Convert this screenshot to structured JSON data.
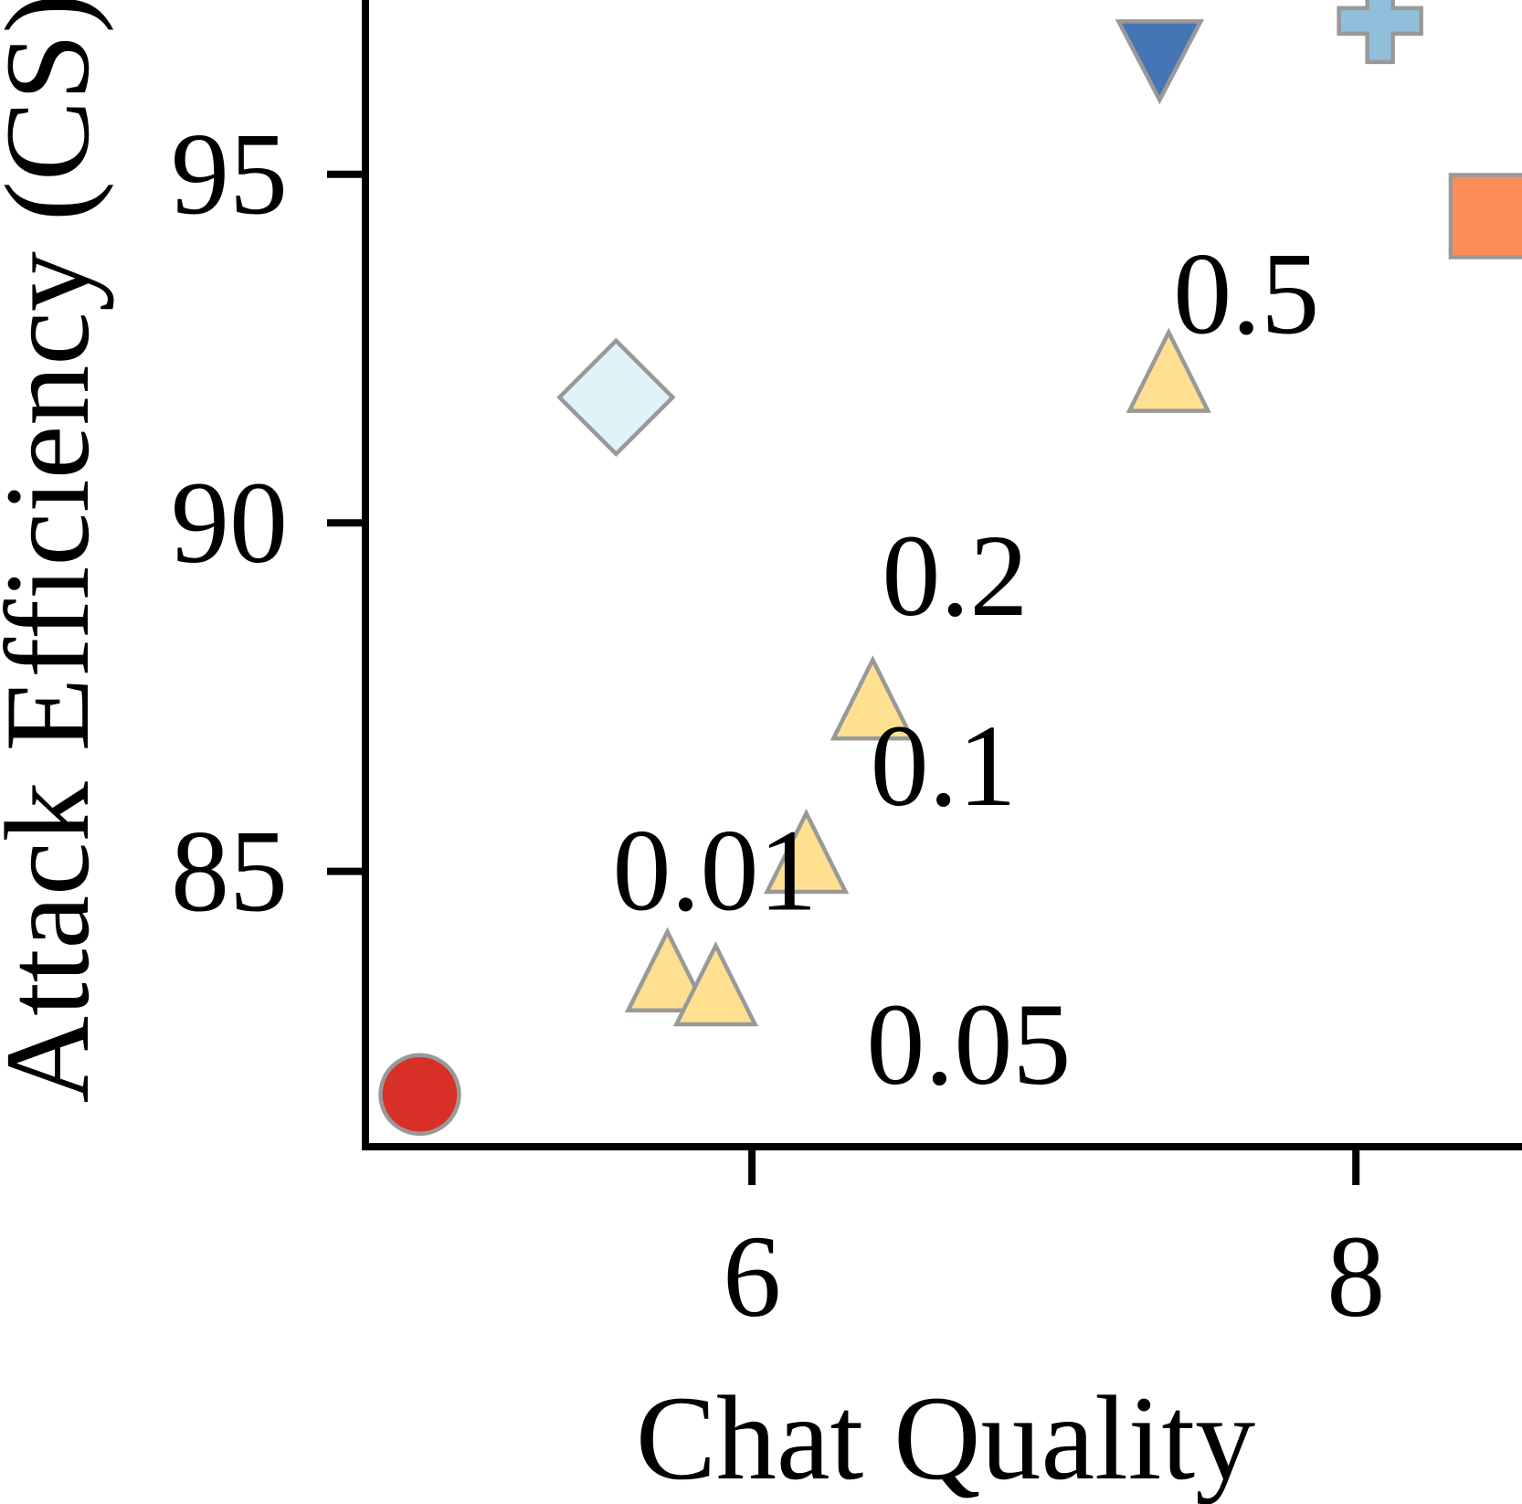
{
  "chart_data": {
    "type": "scatter",
    "title": "",
    "xlabel": "Chat Quality",
    "ylabel": "Attack Efficiency (CS)",
    "xlim": [
      4.72,
      8.55
    ],
    "ylim": [
      81.05,
      97.5
    ],
    "xticks": [
      6,
      8
    ],
    "yticks": [
      85,
      90,
      95
    ],
    "xtick_labels": [
      "6",
      "8"
    ],
    "ytick_labels": [
      "85",
      "90",
      "95"
    ],
    "grid": false,
    "legend": "none",
    "series": [
      {
        "marker": "circle",
        "color": "#d73027",
        "points": [
          {
            "x": 4.9,
            "y": 81.8
          }
        ]
      },
      {
        "marker": "diamond",
        "color": "#e0f3f8",
        "points": [
          {
            "x": 5.55,
            "y": 91.8
          }
        ]
      },
      {
        "marker": "triangle-up",
        "color": "#fee090",
        "points": [
          {
            "x": 5.72,
            "y": 83.4,
            "label": "0.01"
          },
          {
            "x": 5.88,
            "y": 83.2,
            "label": "0.05"
          },
          {
            "x": 6.18,
            "y": 85.1,
            "label": "0.1"
          },
          {
            "x": 6.4,
            "y": 87.3,
            "label": "0.2"
          },
          {
            "x": 7.38,
            "y": 92.0,
            "label": "0.5"
          }
        ]
      },
      {
        "marker": "triangle-down",
        "color": "#4575b4",
        "points": [
          {
            "x": 7.35,
            "y": 96.8
          }
        ]
      },
      {
        "marker": "plus",
        "color": "#91bfdb",
        "points": [
          {
            "x": 8.08,
            "y": 97.2
          }
        ]
      },
      {
        "marker": "square",
        "color": "#fc8d59",
        "points": [
          {
            "x": 8.45,
            "y": 94.4
          }
        ]
      }
    ]
  }
}
